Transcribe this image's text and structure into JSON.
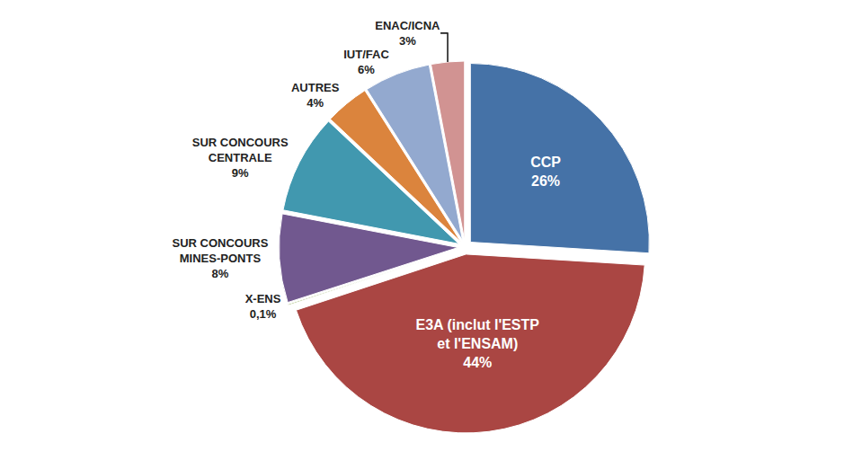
{
  "chart_data": {
    "type": "pie",
    "categories": [
      "CCP",
      "E3A (inclut l'ESTP et l'ENSAM)",
      "X-ENS",
      "SUR CONCOURS MINES-PONTS",
      "SUR CONCOURS CENTRALE",
      "AUTRES",
      "IUT/FAC",
      "ENAC/ICNA"
    ],
    "values": [
      26,
      44,
      0.1,
      8,
      9,
      4,
      6,
      3
    ],
    "value_labels": [
      "26%",
      "44%",
      "0,1%",
      "8%",
      "9%",
      "4%",
      "6%",
      "3%"
    ],
    "colors": [
      "#4572a7",
      "#aa4643",
      "#89a54e",
      "#71588f",
      "#4198af",
      "#db843d",
      "#93a9cf",
      "#d19392"
    ],
    "data_labels": true
  }
}
